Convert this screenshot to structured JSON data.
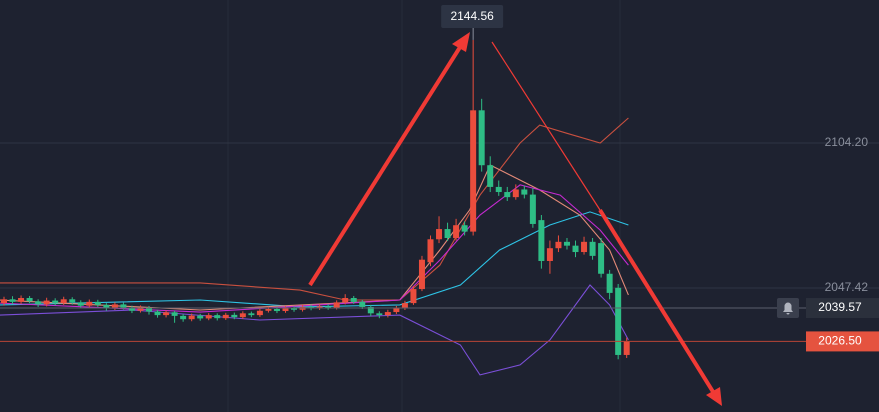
{
  "chart_data": {
    "type": "candlestick",
    "open": [
      2041.5,
      2043.0,
      2042.0,
      2043.5,
      2042.2,
      2041.0,
      2042.5,
      2041.5,
      2043.0,
      2041.8,
      2040.5,
      2042.0,
      2040.8,
      2039.5,
      2041.0,
      2039.8,
      2038.5,
      2039.8,
      2038.2,
      2036.8,
      2037.9,
      2036.5,
      2035.2,
      2036.6,
      2035.5,
      2036.8,
      2035.6,
      2036.9,
      2036.0,
      2037.5,
      2036.8,
      2038.5,
      2039.2,
      2038.4,
      2039.6,
      2038.9,
      2040.0,
      2039.5,
      2040.2,
      2039.6,
      2041.8,
      2043.5,
      2042.0,
      2040.0,
      2037.5,
      2036.8,
      2038.0,
      2039.5,
      2041.5,
      2047.0,
      2057.5,
      2066.5,
      2070.5,
      2067.0,
      2072.0,
      2069.5,
      2117.0,
      2095.5,
      2087.0,
      2085.0,
      2083.0,
      2086.0,
      2084.0,
      2074.0,
      2058.0,
      2063.0,
      2065.5,
      2064.0,
      2061.5,
      2065.5,
      2065.0,
      2053.0,
      2047.5,
      2021.2
    ],
    "high": [
      2044.0,
      2044.2,
      2044.5,
      2044.3,
      2043.0,
      2043.6,
      2043.4,
      2044.0,
      2043.8,
      2042.6,
      2042.9,
      2042.8,
      2041.5,
      2041.8,
      2041.7,
      2040.5,
      2040.6,
      2040.4,
      2038.9,
      2038.7,
      2038.5,
      2037.2,
      2037.4,
      2037.3,
      2037.6,
      2037.5,
      2037.7,
      2037.8,
      2038.3,
      2038.2,
      2039.3,
      2040.1,
      2040.0,
      2040.4,
      2040.3,
      2040.8,
      2040.9,
      2041.0,
      2041.1,
      2042.6,
      2045.0,
      2044.3,
      2042.8,
      2040.8,
      2038.3,
      2038.9,
      2040.4,
      2042.4,
      2048.2,
      2060.0,
      2068.0,
      2075.5,
      2073.0,
      2074.5,
      2073.5,
      2144.56,
      2121.5,
      2099.0,
      2089.5,
      2087.0,
      2088.0,
      2087.5,
      2086.5,
      2076.0,
      2066.0,
      2068.0,
      2067.0,
      2066.0,
      2067.5,
      2067.0,
      2067.0,
      2054.5,
      2049.0,
      2028.0
    ],
    "low": [
      2040.5,
      2041.0,
      2041.2,
      2041.5,
      2040.0,
      2040.2,
      2040.6,
      2040.8,
      2040.9,
      2039.6,
      2039.8,
      2040.0,
      2038.5,
      2038.8,
      2039.0,
      2037.6,
      2037.8,
      2037.0,
      2035.8,
      2035.9,
      2033.8,
      2034.2,
      2034.4,
      2034.6,
      2034.8,
      2034.7,
      2034.9,
      2035.2,
      2035.3,
      2036.0,
      2036.1,
      2037.8,
      2037.6,
      2037.7,
      2038.1,
      2038.2,
      2038.7,
      2038.8,
      2038.9,
      2039.0,
      2041.0,
      2041.2,
      2039.2,
      2036.4,
      2035.6,
      2035.9,
      2037.2,
      2038.8,
      2040.8,
      2046.2,
      2056.0,
      2065.0,
      2065.8,
      2066.0,
      2068.0,
      2068.0,
      2093.0,
      2085.0,
      2083.5,
      2081.5,
      2082.0,
      2082.5,
      2071.0,
      2055.0,
      2053.0,
      2061.5,
      2062.5,
      2059.5,
      2060.5,
      2058.5,
      2051.5,
      2043.0,
      2019.5,
      2020.0
    ],
    "close": [
      2043.0,
      2042.0,
      2043.5,
      2042.2,
      2041.0,
      2042.5,
      2041.5,
      2043.0,
      2041.8,
      2040.5,
      2042.0,
      2040.8,
      2039.5,
      2041.0,
      2039.8,
      2038.5,
      2039.8,
      2038.2,
      2036.8,
      2037.9,
      2036.5,
      2035.2,
      2036.6,
      2035.5,
      2036.8,
      2035.6,
      2036.9,
      2036.0,
      2037.5,
      2036.8,
      2038.5,
      2039.2,
      2038.4,
      2039.6,
      2038.9,
      2040.0,
      2039.5,
      2040.2,
      2039.6,
      2041.8,
      2043.5,
      2042.0,
      2040.0,
      2037.5,
      2036.8,
      2038.0,
      2039.5,
      2041.5,
      2047.0,
      2058.5,
      2066.5,
      2070.5,
      2067.0,
      2072.0,
      2069.5,
      2117.0,
      2095.5,
      2087.0,
      2085.0,
      2083.0,
      2086.0,
      2084.0,
      2072.5,
      2058.0,
      2063.0,
      2065.5,
      2064.0,
      2061.5,
      2065.5,
      2060.0,
      2053.0,
      2045.5,
      2021.2,
      2026.5
    ],
    "up_color": "#eb4d3d",
    "down_color": "#2ebd85",
    "ylim": [
      1998.86,
      2160.2
    ],
    "yticks": [
      {
        "value": 2104.2,
        "label": "2104.20"
      },
      {
        "value": 2047.42,
        "label": "2047.42"
      }
    ],
    "grid": true,
    "overlays": [
      {
        "color": "#c9503f",
        "x": [
          -0.5,
          23,
          34.7,
          40,
          46.4,
          51.1,
          55.8,
          60.5,
          62.8,
          66,
          69.9,
          73.2
        ],
        "values": [
          2049.4,
          2049.4,
          2046.6,
          2042.7,
          2042.7,
          2056.4,
          2083.8,
          2104.2,
          2111.2,
          2108,
          2104.2,
          2114.0
        ]
      },
      {
        "color": "#7b4fd8",
        "x": [
          -0.5,
          15,
          30,
          46.4,
          53.5,
          55.8,
          60.5,
          64,
          68.7,
          71,
          73.2
        ],
        "values": [
          2036.8,
          2038.8,
          2034.9,
          2036.8,
          2025.1,
          2013.4,
          2017.3,
          2027.1,
          2048.6,
          2040.8,
          2027.1
        ]
      },
      {
        "color": "#2ec4e6",
        "x": [
          -0.5,
          23,
          34.7,
          46.4,
          53.5,
          58.1,
          64,
          68.7,
          73.2
        ],
        "values": [
          2040.8,
          2042.7,
          2040.0,
          2040.8,
          2048.6,
          2062.3,
          2072.1,
          2077.2,
          2072.1
        ]
      },
      {
        "color": "#e58a78",
        "x": [
          -0.5,
          23,
          46.4,
          51.1,
          54.6,
          57,
          62.8,
          67.5,
          71,
          73.2
        ],
        "values": [
          2042.7,
          2038.8,
          2042.7,
          2062.3,
          2078.0,
          2095.6,
          2085.8,
          2076.0,
          2062.3,
          2044.7
        ]
      },
      {
        "color": "#c42ad0",
        "x": [
          -0.5,
          23,
          46.4,
          51.1,
          55.8,
          60.5,
          65.2,
          69.9,
          73.2
        ],
        "values": [
          2041.5,
          2038.0,
          2042.7,
          2058.4,
          2076.0,
          2087.8,
          2083.8,
          2070.1,
          2056.4
        ]
      }
    ],
    "price_lines": [
      {
        "value": 2039.57,
        "label": "2039.57",
        "color": "#2b303c",
        "line_color": "#5a5f6b"
      },
      {
        "value": 2026.5,
        "label": "2026.50",
        "color": "#e5533f",
        "line_color": "#b84436"
      }
    ]
  }
}
